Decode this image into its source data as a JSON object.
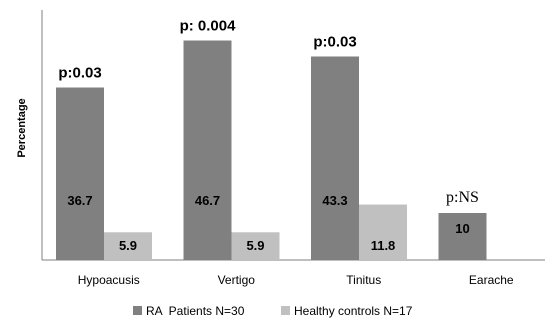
{
  "chart_data": {
    "type": "bar",
    "title": "",
    "xlabel": "",
    "ylabel": "Percentage",
    "categories": [
      "Hypoacusis",
      "Vertigo",
      "Tinitus",
      "Earache"
    ],
    "ylim": [
      0,
      50
    ],
    "series": [
      {
        "name": "RA  Patients N=30",
        "values": [
          36.7,
          46.7,
          43.3,
          10
        ],
        "value_labels": [
          "36.7",
          "46.7",
          "43.3",
          "10"
        ],
        "color": "#808080"
      },
      {
        "name": "Healthy controls N=17",
        "values": [
          5.9,
          5.9,
          11.8,
          null
        ],
        "value_labels": [
          "5.9",
          "5.9",
          "11.8",
          ""
        ],
        "color": "#c0c0c0"
      }
    ],
    "annotations": [
      "p:0.03",
      "p: 0.004",
      "p:0.03",
      "p:NS"
    ],
    "legend_position": "bottom",
    "grid": false
  }
}
